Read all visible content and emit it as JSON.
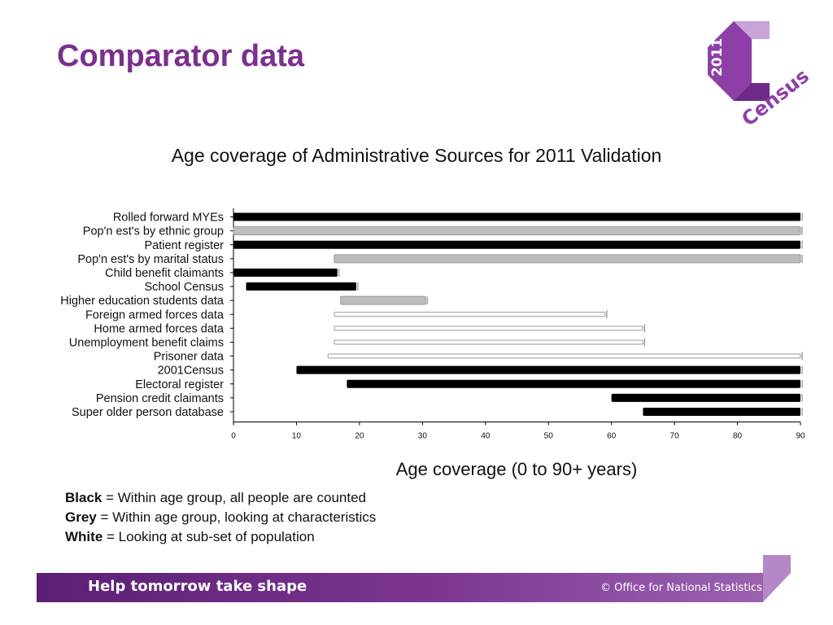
{
  "slide": {
    "title": "Comparator data"
  },
  "logo": {
    "year_text": "2011",
    "word_text": "Census",
    "color_primary": "#8e3fa7",
    "color_light": "#c9a4d8"
  },
  "chart_data": {
    "type": "bar",
    "title": "Age coverage of Administrative Sources for 2011 Validation",
    "xlabel": "Age coverage (0 to 90+ years)",
    "xlim": [
      0,
      90
    ],
    "xticks": [
      "0",
      "10",
      "20",
      "30",
      "40",
      "50",
      "60",
      "70",
      "80",
      "90"
    ],
    "colors": {
      "black": "#000000",
      "grey": "#bdbdbd",
      "white": "#ffffff"
    },
    "bars": [
      {
        "category": "Rolled forward MYEs",
        "start": 0,
        "end": 90,
        "style": "black"
      },
      {
        "category": "Pop'n est's by ethnic group",
        "start": 0,
        "end": 90,
        "style": "grey"
      },
      {
        "category": "Patient register",
        "start": 0,
        "end": 90,
        "style": "black"
      },
      {
        "category": "Pop'n est's by marital status",
        "start": 16,
        "end": 90,
        "style": "grey"
      },
      {
        "category": "Child benefit claimants",
        "start": 0,
        "end": 16.5,
        "style": "black"
      },
      {
        "category": "School Census",
        "start": 2,
        "end": 19.5,
        "style": "black"
      },
      {
        "category": "Higher education students data",
        "start": 17,
        "end": 30.5,
        "style": "grey"
      },
      {
        "category": "Foreign armed forces data",
        "start": 16,
        "end": 59,
        "style": "white"
      },
      {
        "category": "Home armed forces data",
        "start": 16,
        "end": 65,
        "style": "white"
      },
      {
        "category": "Unemployment benefit claims",
        "start": 16,
        "end": 65,
        "style": "white"
      },
      {
        "category": "Prisoner data",
        "start": 15,
        "end": 90,
        "style": "white"
      },
      {
        "category": "2001Census",
        "start": 10,
        "end": 90,
        "style": "black"
      },
      {
        "category": "Electoral register",
        "start": 18,
        "end": 90,
        "style": "black"
      },
      {
        "category": "Pension credit claimants",
        "start": 60,
        "end": 90,
        "style": "black"
      },
      {
        "category": "Super older person database",
        "start": 65,
        "end": 90,
        "style": "black"
      }
    ]
  },
  "legend": [
    {
      "term": "Black",
      "text": " = Within age group, all people are counted"
    },
    {
      "term": "Grey",
      "text": " = Within age group, looking at characteristics"
    },
    {
      "term": "White",
      "text": " = Looking at sub-set of population"
    }
  ],
  "footer": {
    "slogan": "Help tomorrow take shape",
    "organisation": "© Office for National Statistics"
  }
}
